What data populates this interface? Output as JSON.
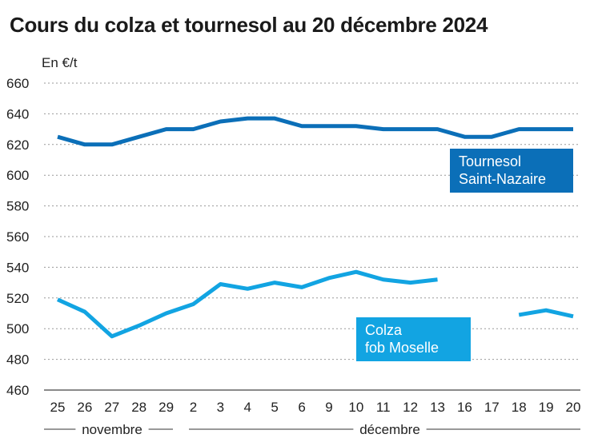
{
  "title": "Cours du colza et tournesol au 20 décembre 2024",
  "chart_data": {
    "type": "line",
    "title": "Cours du colza et tournesol au 20 décembre 2024",
    "ylabel": "En €/t",
    "ylim": [
      460,
      660
    ],
    "yticks": [
      460,
      480,
      500,
      520,
      540,
      560,
      580,
      600,
      620,
      640,
      660
    ],
    "grid": true,
    "categories": [
      "25",
      "26",
      "27",
      "28",
      "29",
      "2",
      "3",
      "4",
      "5",
      "6",
      "9",
      "10",
      "11",
      "12",
      "13",
      "16",
      "17",
      "18",
      "19",
      "20"
    ],
    "months": [
      {
        "label": "novembre",
        "from": 0,
        "to": 4
      },
      {
        "label": "décembre",
        "from": 5,
        "to": 19
      }
    ],
    "series": [
      {
        "name": "Tournesol Saint-Nazaire",
        "label_lines": [
          "Tournesol",
          "Saint-Nazaire"
        ],
        "color": "#0b6fb8",
        "values": [
          625,
          620,
          620,
          625,
          630,
          630,
          635,
          637,
          637,
          632,
          632,
          632,
          630,
          630,
          630,
          625,
          625,
          630,
          630,
          630
        ]
      },
      {
        "name": "Colza fob Moselle",
        "label_lines": [
          "Colza",
          "fob Moselle"
        ],
        "color": "#12a4e2",
        "values": [
          519,
          511,
          495,
          502,
          510,
          516,
          529,
          526,
          530,
          527,
          533,
          537,
          532,
          530,
          532,
          null,
          null,
          509,
          512,
          508
        ]
      }
    ]
  }
}
